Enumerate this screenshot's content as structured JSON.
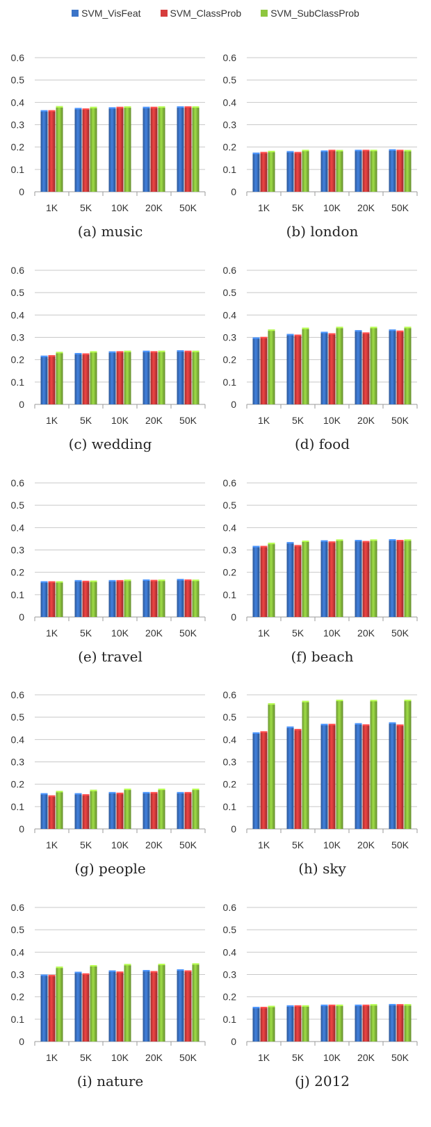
{
  "legend": [
    {
      "name": "SVM_VisFeat",
      "color": "#3b74c8"
    },
    {
      "name": "SVM_ClassProb",
      "color": "#d63d3d"
    },
    {
      "name": "SVM_SubClassProb",
      "color": "#8ec63f"
    }
  ],
  "chart_data": [
    {
      "type": "bar",
      "caption": "(a) music",
      "categories": [
        "1K",
        "5K",
        "10K",
        "20K",
        "50K"
      ],
      "ylim": [
        0,
        0.6
      ],
      "yticks": [
        "0",
        "0.1",
        "0.2",
        "0.3",
        "0.4",
        "0.5",
        "0.6"
      ],
      "grid": true,
      "legend": "top-center",
      "series": [
        {
          "name": "SVM_VisFeat",
          "values": [
            0.365,
            0.375,
            0.378,
            0.38,
            0.382
          ]
        },
        {
          "name": "SVM_ClassProb",
          "values": [
            0.365,
            0.373,
            0.38,
            0.38,
            0.382
          ]
        },
        {
          "name": "SVM_SubClassProb",
          "values": [
            0.383,
            0.38,
            0.382,
            0.382,
            0.382
          ]
        }
      ]
    },
    {
      "type": "bar",
      "caption": "(b) london",
      "categories": [
        "1K",
        "5K",
        "10K",
        "20K",
        "50K"
      ],
      "ylim": [
        0,
        0.6
      ],
      "yticks": [
        "0",
        "0.1",
        "0.2",
        "0.3",
        "0.4",
        "0.5",
        "0.6"
      ],
      "grid": true,
      "legend": "top-center",
      "series": [
        {
          "name": "SVM_VisFeat",
          "values": [
            0.175,
            0.182,
            0.185,
            0.188,
            0.19
          ]
        },
        {
          "name": "SVM_ClassProb",
          "values": [
            0.178,
            0.178,
            0.188,
            0.188,
            0.188
          ]
        },
        {
          "name": "SVM_SubClassProb",
          "values": [
            0.183,
            0.188,
            0.187,
            0.188,
            0.187
          ]
        }
      ]
    },
    {
      "type": "bar",
      "caption": "(c) wedding",
      "categories": [
        "1K",
        "5K",
        "10K",
        "20K",
        "50K"
      ],
      "ylim": [
        0,
        0.6
      ],
      "yticks": [
        "0",
        "0.1",
        "0.2",
        "0.3",
        "0.4",
        "0.5",
        "0.6"
      ],
      "grid": true,
      "legend": "top-center",
      "series": [
        {
          "name": "SVM_VisFeat",
          "values": [
            0.218,
            0.23,
            0.237,
            0.24,
            0.242
          ]
        },
        {
          "name": "SVM_ClassProb",
          "values": [
            0.22,
            0.228,
            0.238,
            0.238,
            0.24
          ]
        },
        {
          "name": "SVM_SubClassProb",
          "values": [
            0.235,
            0.238,
            0.24,
            0.24,
            0.24
          ]
        }
      ]
    },
    {
      "type": "bar",
      "caption": "(d) food",
      "categories": [
        "1K",
        "5K",
        "10K",
        "20K",
        "50K"
      ],
      "ylim": [
        0,
        0.6
      ],
      "yticks": [
        "0",
        "0.1",
        "0.2",
        "0.3",
        "0.4",
        "0.5",
        "0.6"
      ],
      "grid": true,
      "legend": "top-center",
      "series": [
        {
          "name": "SVM_VisFeat",
          "values": [
            0.3,
            0.315,
            0.325,
            0.332,
            0.335
          ]
        },
        {
          "name": "SVM_ClassProb",
          "values": [
            0.302,
            0.312,
            0.318,
            0.322,
            0.33
          ]
        },
        {
          "name": "SVM_SubClassProb",
          "values": [
            0.335,
            0.343,
            0.347,
            0.347,
            0.347
          ]
        }
      ]
    },
    {
      "type": "bar",
      "caption": "(e) travel",
      "categories": [
        "1K",
        "5K",
        "10K",
        "20K",
        "50K"
      ],
      "ylim": [
        0,
        0.6
      ],
      "yticks": [
        "0",
        "0.1",
        "0.2",
        "0.3",
        "0.4",
        "0.5",
        "0.6"
      ],
      "grid": true,
      "legend": "top-center",
      "series": [
        {
          "name": "SVM_VisFeat",
          "values": [
            0.16,
            0.165,
            0.165,
            0.168,
            0.17
          ]
        },
        {
          "name": "SVM_ClassProb",
          "values": [
            0.16,
            0.162,
            0.165,
            0.166,
            0.168
          ]
        },
        {
          "name": "SVM_SubClassProb",
          "values": [
            0.16,
            0.163,
            0.167,
            0.167,
            0.167
          ]
        }
      ]
    },
    {
      "type": "bar",
      "caption": "(f) beach",
      "categories": [
        "1K",
        "5K",
        "10K",
        "20K",
        "50K"
      ],
      "ylim": [
        0,
        0.6
      ],
      "yticks": [
        "0",
        "0.1",
        "0.2",
        "0.3",
        "0.4",
        "0.5",
        "0.6"
      ],
      "grid": true,
      "legend": "top-center",
      "series": [
        {
          "name": "SVM_VisFeat",
          "values": [
            0.318,
            0.335,
            0.343,
            0.345,
            0.348
          ]
        },
        {
          "name": "SVM_ClassProb",
          "values": [
            0.318,
            0.322,
            0.338,
            0.34,
            0.345
          ]
        },
        {
          "name": "SVM_SubClassProb",
          "values": [
            0.332,
            0.342,
            0.347,
            0.347,
            0.347
          ]
        }
      ]
    },
    {
      "type": "bar",
      "caption": "(g) people",
      "categories": [
        "1K",
        "5K",
        "10K",
        "20K",
        "50K"
      ],
      "ylim": [
        0,
        0.6
      ],
      "yticks": [
        "0",
        "0.1",
        "0.2",
        "0.3",
        "0.4",
        "0.5",
        "0.6"
      ],
      "grid": true,
      "legend": "top-center",
      "series": [
        {
          "name": "SVM_VisFeat",
          "values": [
            0.16,
            0.16,
            0.165,
            0.165,
            0.165
          ]
        },
        {
          "name": "SVM_ClassProb",
          "values": [
            0.15,
            0.155,
            0.162,
            0.165,
            0.165
          ]
        },
        {
          "name": "SVM_SubClassProb",
          "values": [
            0.17,
            0.175,
            0.18,
            0.18,
            0.18
          ]
        }
      ]
    },
    {
      "type": "bar",
      "caption": "(h) sky",
      "categories": [
        "1K",
        "5K",
        "10K",
        "20K",
        "50K"
      ],
      "ylim": [
        0,
        0.6
      ],
      "yticks": [
        "0",
        "0.1",
        "0.2",
        "0.3",
        "0.4",
        "0.5",
        "0.6"
      ],
      "grid": true,
      "legend": "top-center",
      "series": [
        {
          "name": "SVM_VisFeat",
          "values": [
            0.432,
            0.458,
            0.47,
            0.473,
            0.477
          ]
        },
        {
          "name": "SVM_ClassProb",
          "values": [
            0.437,
            0.447,
            0.47,
            0.468,
            0.467
          ]
        },
        {
          "name": "SVM_SubClassProb",
          "values": [
            0.562,
            0.573,
            0.578,
            0.577,
            0.578
          ]
        }
      ]
    },
    {
      "type": "bar",
      "caption": "(i) nature",
      "categories": [
        "1K",
        "5K",
        "10K",
        "20K",
        "50K"
      ],
      "ylim": [
        0,
        0.6
      ],
      "yticks": [
        "0",
        "0.1",
        "0.2",
        "0.3",
        "0.4",
        "0.5",
        "0.6"
      ],
      "grid": true,
      "legend": "top-center",
      "series": [
        {
          "name": "SVM_VisFeat",
          "values": [
            0.3,
            0.312,
            0.318,
            0.32,
            0.323
          ]
        },
        {
          "name": "SVM_ClassProb",
          "values": [
            0.298,
            0.305,
            0.313,
            0.315,
            0.318
          ]
        },
        {
          "name": "SVM_SubClassProb",
          "values": [
            0.335,
            0.342,
            0.347,
            0.348,
            0.35
          ]
        }
      ]
    },
    {
      "type": "bar",
      "caption": "(j) 2012",
      "categories": [
        "1K",
        "5K",
        "10K",
        "20K",
        "50K"
      ],
      "ylim": [
        0,
        0.6
      ],
      "yticks": [
        "0",
        "0.1",
        "0.2",
        "0.3",
        "0.4",
        "0.5",
        "0.6"
      ],
      "grid": true,
      "legend": "top-center",
      "series": [
        {
          "name": "SVM_VisFeat",
          "values": [
            0.155,
            0.162,
            0.165,
            0.165,
            0.168
          ]
        },
        {
          "name": "SVM_ClassProb",
          "values": [
            0.155,
            0.162,
            0.165,
            0.165,
            0.167
          ]
        },
        {
          "name": "SVM_SubClassProb",
          "values": [
            0.16,
            0.162,
            0.165,
            0.167,
            0.167
          ]
        }
      ]
    }
  ]
}
